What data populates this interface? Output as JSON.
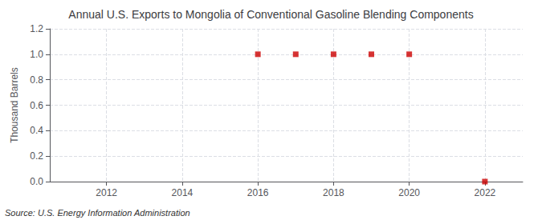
{
  "chart_data": {
    "type": "scatter",
    "title": "Annual U.S. Exports to Mongolia of Conventional Gasoline Blending Components",
    "ylabel": "Thousand Barrels",
    "annotation": "Source: U.S. Energy Information Administration",
    "x": [
      2016,
      2017,
      2018,
      2019,
      2020,
      2022
    ],
    "values": [
      1.0,
      1.0,
      1.0,
      1.0,
      1.0,
      0.0
    ],
    "color": "#cc0000",
    "marker": "square",
    "xlim": [
      2010.5,
      2023.0
    ],
    "xticks": [
      2012,
      2014,
      2016,
      2018,
      2020,
      2022
    ],
    "ylim": [
      0.0,
      1.2
    ],
    "yticks": [
      {
        "value": 0,
        "label": "0.0"
      },
      0.2,
      0.4,
      0.6,
      0.8,
      {
        "value": 1,
        "label": "1.0"
      },
      1.2
    ],
    "grid": true
  }
}
